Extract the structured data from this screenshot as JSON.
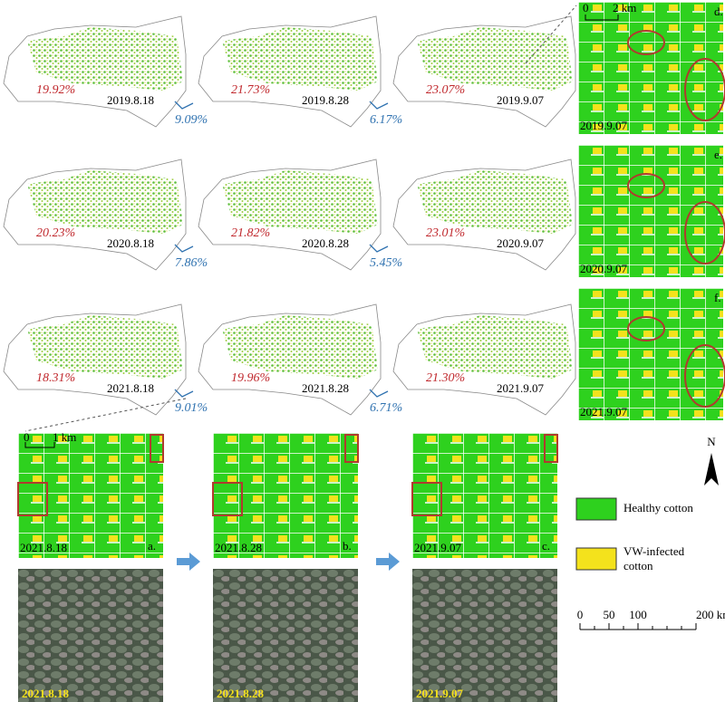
{
  "overview_rows": [
    {
      "maps": [
        {
          "percent": "19.92%",
          "date": "2019.8.18"
        },
        {
          "percent": "21.73%",
          "date": "2019.8.28"
        },
        {
          "percent": "23.07%",
          "date": "2019.9.07"
        }
      ],
      "changes": [
        "9.09%",
        "6.17%"
      ]
    },
    {
      "maps": [
        {
          "percent": "20.23%",
          "date": "2020.8.18"
        },
        {
          "percent": "21.82%",
          "date": "2020.8.28"
        },
        {
          "percent": "23.01%",
          "date": "2020.9.07"
        }
      ],
      "changes": [
        "7.86%",
        "5.45%"
      ]
    },
    {
      "maps": [
        {
          "percent": "18.31%",
          "date": "2021.8.18"
        },
        {
          "percent": "19.96%",
          "date": "2021.8.28"
        },
        {
          "percent": "21.30%",
          "date": "2021.9.07"
        }
      ],
      "changes": [
        "9.01%",
        "6.71%"
      ]
    }
  ],
  "detail_panels": [
    {
      "letter": "d.",
      "date": "2019.9.07"
    },
    {
      "letter": "e.",
      "date": "2020.9.07"
    },
    {
      "letter": "f.",
      "date": "2021.9.07"
    }
  ],
  "detail_scale": {
    "zero": "0",
    "label": "2 km"
  },
  "field_panels": [
    {
      "letter": "a.",
      "date": "2021.8.18",
      "photo_date": "2021.8.18"
    },
    {
      "letter": "b.",
      "date": "2021.8.28",
      "photo_date": "2021.8.28"
    },
    {
      "letter": "c.",
      "date": "2021.9.07",
      "photo_date": "2021.9.07"
    }
  ],
  "field_scale": {
    "zero": "0",
    "label": "1 km"
  },
  "legend": [
    "Healthy cotton",
    "VW-infected cotton"
  ],
  "north": "N",
  "scale_bar": [
    "0",
    "50",
    "100",
    "200 km"
  ]
}
